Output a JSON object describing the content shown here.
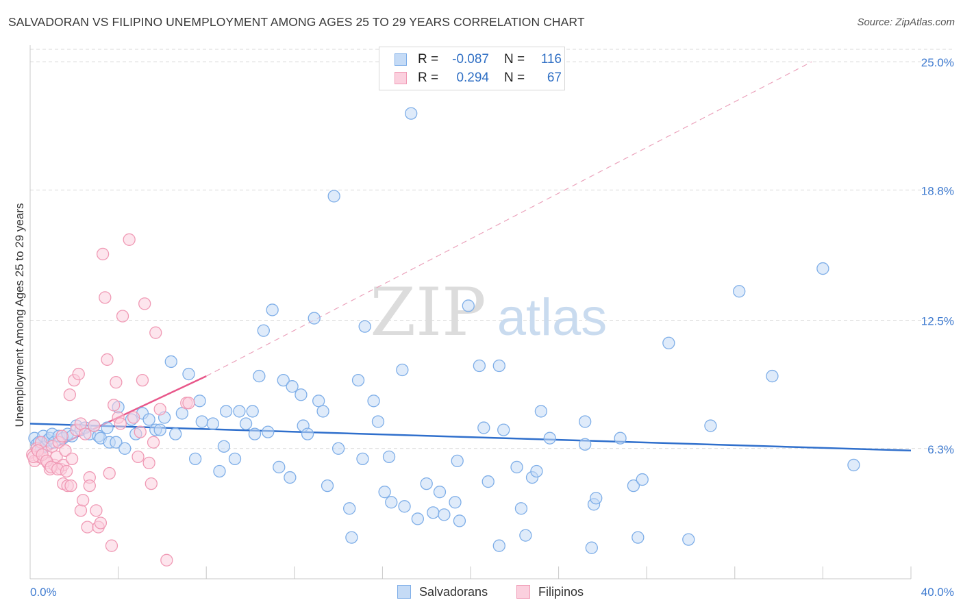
{
  "title": "SALVADORAN VS FILIPINO UNEMPLOYMENT AMONG AGES 25 TO 29 YEARS CORRELATION CHART",
  "source": "Source: ZipAtlas.com",
  "watermark": {
    "zip": "ZIP",
    "atlas": "atlas"
  },
  "legend": {
    "rows": [
      {
        "r_label": "R =",
        "r_value": "-0.087",
        "n_label": "N =",
        "n_value": "116",
        "color": "#7eaee8",
        "fill": "#c5dbf6"
      },
      {
        "r_label": "R =",
        "r_value": "0.294",
        "n_label": "N =",
        "n_value": "67",
        "color": "#f09ab5",
        "fill": "#fbd0de"
      }
    ]
  },
  "bottom_legend": [
    {
      "label": "Salvadorans",
      "color": "#7eaee8",
      "fill": "#c5dbf6"
    },
    {
      "label": "Filipinos",
      "color": "#f09ab5",
      "fill": "#fbd0de"
    }
  ],
  "chart_data": {
    "type": "scatter",
    "title": "SALVADORAN VS FILIPINO UNEMPLOYMENT AMONG AGES 25 TO 29 YEARS CORRELATION CHART",
    "xlabel": "",
    "ylabel": "Unemployment Among Ages 25 to 29 years",
    "xlim": [
      0,
      40
    ],
    "ylim": [
      0,
      25.6
    ],
    "x_tick_labels": [
      "0.0%",
      "40.0%"
    ],
    "y_ticks": [
      6.3,
      12.5,
      18.8,
      25.0
    ],
    "y_tick_labels": [
      "6.3%",
      "12.5%",
      "18.8%",
      "25.0%"
    ],
    "grid": true,
    "series": [
      {
        "name": "Salvadorans",
        "color": "#4a86d6",
        "fill": "#c5dbf6",
        "stroke": "#7eaee8",
        "trend": {
          "x": [
            0,
            40
          ],
          "y": [
            7.5,
            6.2
          ],
          "style": "solid",
          "color": "#2f6fcc"
        },
        "points": [
          [
            0.2,
            6.8
          ],
          [
            0.3,
            6.5
          ],
          [
            0.4,
            6.6
          ],
          [
            0.5,
            6.3
          ],
          [
            0.6,
            6.9
          ],
          [
            0.7,
            6.4
          ],
          [
            0.8,
            6.7
          ],
          [
            0.9,
            6.8
          ],
          [
            1.0,
            7.0
          ],
          [
            1.1,
            6.6
          ],
          [
            1.3,
            6.9
          ],
          [
            1.5,
            6.8
          ],
          [
            1.7,
            7.0
          ],
          [
            1.9,
            6.9
          ],
          [
            2.1,
            7.4
          ],
          [
            2.3,
            7.2
          ],
          [
            2.5,
            7.3
          ],
          [
            2.7,
            7.0
          ],
          [
            2.9,
            7.4
          ],
          [
            3.1,
            6.9
          ],
          [
            3.2,
            6.8
          ],
          [
            3.5,
            7.3
          ],
          [
            3.6,
            6.6
          ],
          [
            3.9,
            6.6
          ],
          [
            4.0,
            8.3
          ],
          [
            4.3,
            6.3
          ],
          [
            4.6,
            7.7
          ],
          [
            4.8,
            7.0
          ],
          [
            5.1,
            8.0
          ],
          [
            5.4,
            7.7
          ],
          [
            5.7,
            7.2
          ],
          [
            5.9,
            7.2
          ],
          [
            6.1,
            7.8
          ],
          [
            6.4,
            10.5
          ],
          [
            6.6,
            7.0
          ],
          [
            6.9,
            8.0
          ],
          [
            7.2,
            9.9
          ],
          [
            7.5,
            5.8
          ],
          [
            7.7,
            8.6
          ],
          [
            7.8,
            7.6
          ],
          [
            8.3,
            7.5
          ],
          [
            8.6,
            5.2
          ],
          [
            8.8,
            6.4
          ],
          [
            8.9,
            8.1
          ],
          [
            9.3,
            5.8
          ],
          [
            9.5,
            8.1
          ],
          [
            9.8,
            7.5
          ],
          [
            10.1,
            8.1
          ],
          [
            10.2,
            7.0
          ],
          [
            10.4,
            9.8
          ],
          [
            10.6,
            12.0
          ],
          [
            10.8,
            7.1
          ],
          [
            11.0,
            13.0
          ],
          [
            11.3,
            5.4
          ],
          [
            11.5,
            9.6
          ],
          [
            11.8,
            4.9
          ],
          [
            11.9,
            9.3
          ],
          [
            12.3,
            8.9
          ],
          [
            12.4,
            7.4
          ],
          [
            12.6,
            7.0
          ],
          [
            12.9,
            12.6
          ],
          [
            13.1,
            8.6
          ],
          [
            13.3,
            8.1
          ],
          [
            13.5,
            4.5
          ],
          [
            13.8,
            18.5
          ],
          [
            14.0,
            6.3
          ],
          [
            14.5,
            3.4
          ],
          [
            14.6,
            2.0
          ],
          [
            14.9,
            9.6
          ],
          [
            15.1,
            5.8
          ],
          [
            15.2,
            12.2
          ],
          [
            15.6,
            8.6
          ],
          [
            15.8,
            7.6
          ],
          [
            16.1,
            4.2
          ],
          [
            16.3,
            5.9
          ],
          [
            16.4,
            3.7
          ],
          [
            16.9,
            10.1
          ],
          [
            17.0,
            3.5
          ],
          [
            17.6,
            2.9
          ],
          [
            18.0,
            4.6
          ],
          [
            17.3,
            22.5
          ],
          [
            18.3,
            3.2
          ],
          [
            18.6,
            4.2
          ],
          [
            18.8,
            3.1
          ],
          [
            19.3,
            3.7
          ],
          [
            19.4,
            5.7
          ],
          [
            19.5,
            2.8
          ],
          [
            19.9,
            13.2
          ],
          [
            20.6,
            7.3
          ],
          [
            20.8,
            4.7
          ],
          [
            20.4,
            10.3
          ],
          [
            21.3,
            10.3
          ],
          [
            21.5,
            7.2
          ],
          [
            21.3,
            1.6
          ],
          [
            22.1,
            5.4
          ],
          [
            22.3,
            3.4
          ],
          [
            22.5,
            2.1
          ],
          [
            22.8,
            4.9
          ],
          [
            23.2,
            8.1
          ],
          [
            23.0,
            5.2
          ],
          [
            23.6,
            6.8
          ],
          [
            25.2,
            7.6
          ],
          [
            25.2,
            6.5
          ],
          [
            25.6,
            3.6
          ],
          [
            25.7,
            3.9
          ],
          [
            25.5,
            1.5
          ],
          [
            26.8,
            6.8
          ],
          [
            27.4,
            4.5
          ],
          [
            27.6,
            2.0
          ],
          [
            27.8,
            4.8
          ],
          [
            29.9,
            1.9
          ],
          [
            29.0,
            11.4
          ],
          [
            30.9,
            7.4
          ],
          [
            32.2,
            13.9
          ],
          [
            33.7,
            9.8
          ],
          [
            36.0,
            15.0
          ],
          [
            37.4,
            5.5
          ]
        ]
      },
      {
        "name": "Filipinos",
        "color": "#e86a92",
        "fill": "#fbd0de",
        "stroke": "#f09ab5",
        "trend": {
          "x": [
            0,
            8.0
          ],
          "y": [
            5.8,
            9.8
          ],
          "style": "solid",
          "color": "#e8578a",
          "extension": {
            "x": [
              8.0,
              35.5
            ],
            "y": [
              9.8,
              25.0
            ],
            "style": "dashed"
          }
        },
        "points": [
          [
            0.1,
            6.0
          ],
          [
            0.2,
            5.7
          ],
          [
            0.3,
            6.3
          ],
          [
            0.4,
            5.9
          ],
          [
            0.5,
            6.6
          ],
          [
            0.6,
            5.8
          ],
          [
            0.7,
            6.1
          ],
          [
            0.8,
            5.6
          ],
          [
            0.9,
            5.3
          ],
          [
            1.0,
            6.4
          ],
          [
            1.1,
            5.5
          ],
          [
            1.2,
            5.9
          ],
          [
            1.3,
            6.6
          ],
          [
            1.4,
            5.3
          ],
          [
            1.5,
            4.6
          ],
          [
            1.5,
            5.5
          ],
          [
            1.6,
            6.2
          ],
          [
            1.7,
            4.5
          ],
          [
            1.8,
            8.9
          ],
          [
            1.9,
            5.8
          ],
          [
            2.0,
            9.6
          ],
          [
            2.1,
            7.2
          ],
          [
            2.2,
            9.9
          ],
          [
            2.3,
            7.5
          ],
          [
            2.3,
            3.3
          ],
          [
            2.4,
            3.8
          ],
          [
            2.5,
            7.0
          ],
          [
            2.6,
            2.5
          ],
          [
            2.7,
            4.9
          ],
          [
            2.7,
            4.5
          ],
          [
            2.9,
            7.4
          ],
          [
            3.0,
            3.3
          ],
          [
            3.1,
            2.5
          ],
          [
            3.2,
            2.7
          ],
          [
            3.3,
            15.7
          ],
          [
            3.4,
            13.6
          ],
          [
            3.5,
            10.6
          ],
          [
            3.6,
            5.1
          ],
          [
            3.7,
            1.6
          ],
          [
            3.8,
            8.4
          ],
          [
            3.9,
            9.5
          ],
          [
            4.0,
            7.8
          ],
          [
            4.1,
            7.5
          ],
          [
            4.2,
            12.7
          ],
          [
            4.5,
            16.4
          ],
          [
            4.7,
            7.8
          ],
          [
            4.9,
            5.9
          ],
          [
            5.0,
            7.1
          ],
          [
            5.1,
            9.6
          ],
          [
            5.2,
            13.3
          ],
          [
            5.4,
            5.6
          ],
          [
            5.5,
            4.6
          ],
          [
            5.6,
            6.6
          ],
          [
            5.7,
            11.9
          ],
          [
            5.9,
            8.2
          ],
          [
            6.2,
            0.9
          ],
          [
            7.1,
            8.5
          ],
          [
            7.2,
            8.5
          ],
          [
            0.15,
            5.9
          ],
          [
            0.35,
            6.2
          ],
          [
            0.55,
            6.0
          ],
          [
            0.75,
            5.7
          ],
          [
            0.95,
            5.4
          ],
          [
            1.25,
            5.3
          ],
          [
            1.45,
            6.9
          ],
          [
            1.65,
            5.2
          ],
          [
            1.85,
            4.5
          ]
        ]
      }
    ]
  }
}
